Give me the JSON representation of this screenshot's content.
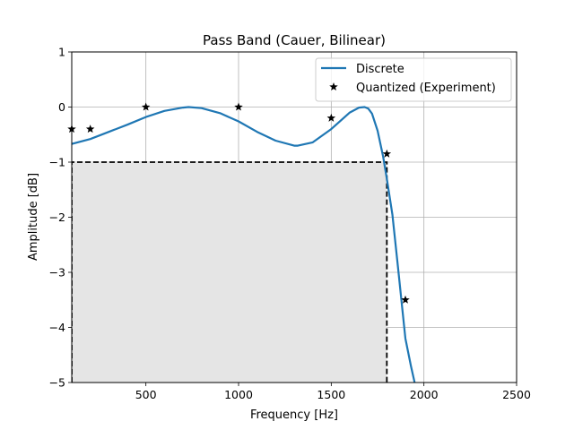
{
  "chart_data": {
    "type": "line",
    "title": "Pass Band (Cauer, Bilinear)",
    "xlabel": "Frequency [Hz]",
    "ylabel": "Amplitude [dB]",
    "xlim": [
      100,
      2500
    ],
    "ylim": [
      -5,
      1
    ],
    "xticks": [
      500,
      1000,
      1500,
      2000,
      2500
    ],
    "yticks": [
      1,
      0,
      -1,
      -2,
      -3,
      -4,
      -5
    ],
    "ytick_labels": [
      "1",
      "0",
      "−1",
      "−2",
      "−3",
      "−4",
      "−5"
    ],
    "grid": true,
    "legend_position": "upper-right",
    "colors": {
      "discrete": "#1f77b4",
      "quantized": "#000000",
      "passband_fill": "#e5e5e5",
      "grid": "#b0b0b0"
    },
    "series": [
      {
        "name": "Discrete",
        "kind": "line",
        "x": [
          100,
          200,
          300,
          400,
          500,
          600,
          700,
          730,
          800,
          900,
          1000,
          1100,
          1200,
          1300,
          1320,
          1400,
          1500,
          1600,
          1650,
          1680,
          1700,
          1720,
          1750,
          1780,
          1800,
          1830,
          1860,
          1900,
          1930,
          1950
        ],
        "values": [
          -0.67,
          -0.58,
          -0.45,
          -0.32,
          -0.18,
          -0.07,
          -0.01,
          0.0,
          -0.02,
          -0.11,
          -0.26,
          -0.45,
          -0.61,
          -0.7,
          -0.7,
          -0.64,
          -0.4,
          -0.1,
          -0.01,
          0.0,
          -0.03,
          -0.12,
          -0.43,
          -0.9,
          -1.3,
          -1.95,
          -2.9,
          -4.2,
          -4.7,
          -5.0
        ]
      },
      {
        "name": "Quantized (Experiment)",
        "kind": "scatter",
        "marker": "star",
        "x": [
          100,
          200,
          500,
          1000,
          1500,
          1800,
          1900
        ],
        "values": [
          -0.4,
          -0.4,
          0.0,
          0.0,
          -0.2,
          -0.85,
          -3.5
        ]
      }
    ],
    "passband_box": {
      "x": [
        100,
        1800
      ],
      "y": [
        -5,
        -1
      ]
    }
  }
}
